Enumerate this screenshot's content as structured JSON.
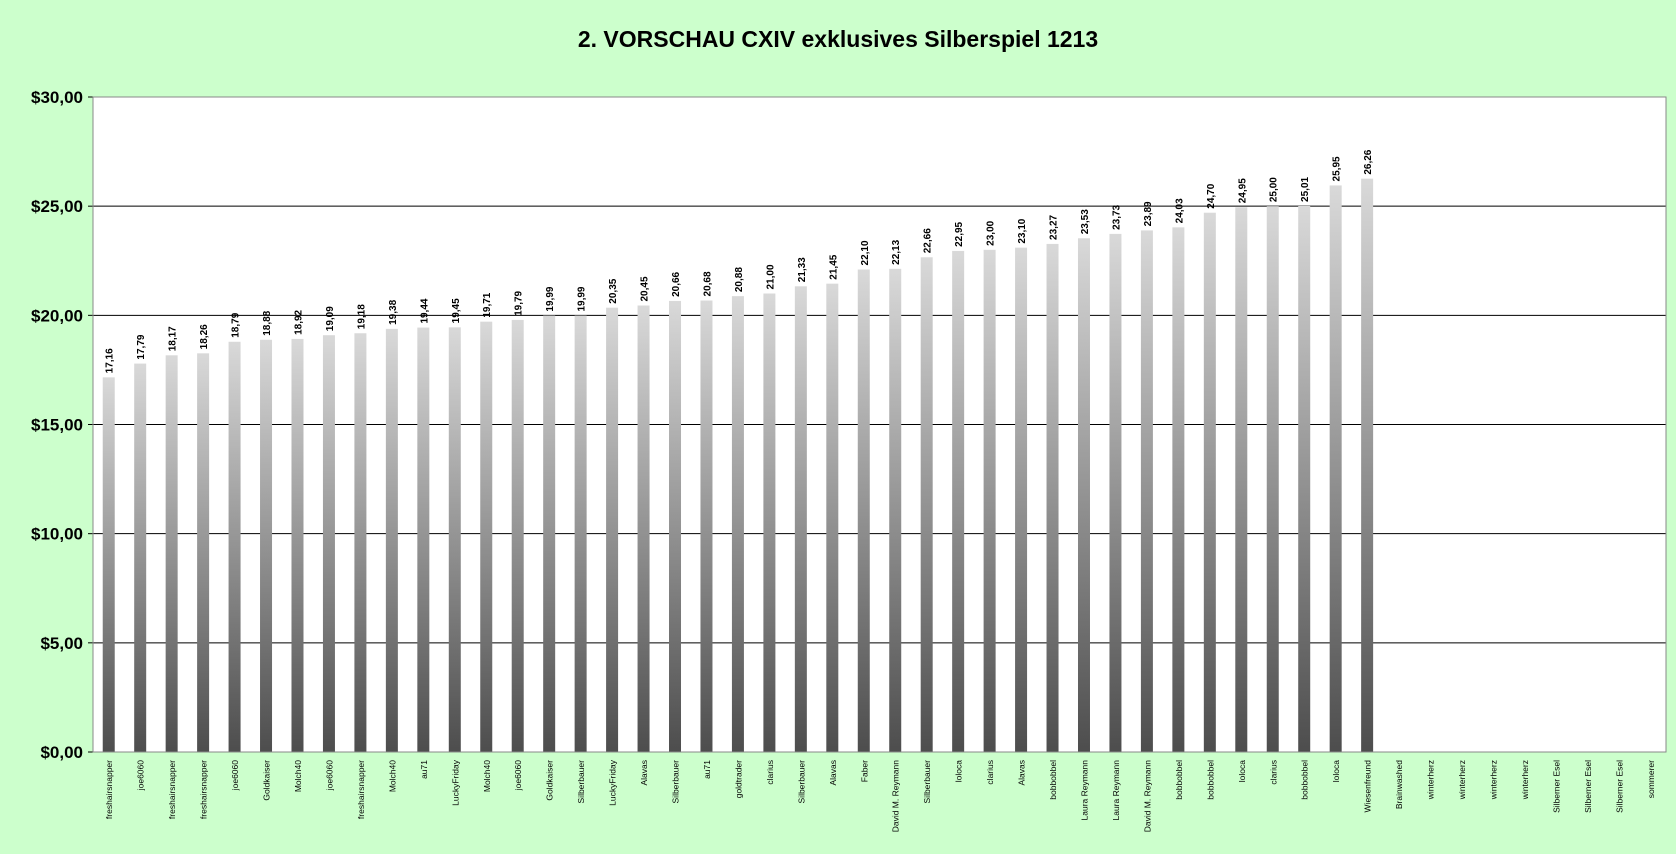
{
  "chart_data": {
    "type": "bar",
    "title": "2. VORSCHAU CXIV exklusives Silberspiel 1213",
    "xlabel": "",
    "ylabel": "",
    "ylim": [
      0,
      30
    ],
    "yticks": [
      "$0,00",
      "$5,00",
      "$10,00",
      "$15,00",
      "$20,00",
      "$25,00",
      "$30,00"
    ],
    "grid": true,
    "legend": "none",
    "colors": {
      "background": "#ccffcc",
      "plot_area": "#ffffff",
      "bar_light": "#d9d9d9",
      "bar_dark": "#4d4d4d",
      "grid": "#000000"
    },
    "categories": [
      "freshairsnapper",
      "joe6060",
      "freshairsnapper",
      "freshairsnapper",
      "joe6060",
      "Goldkaiser",
      "Molch40",
      "joe6060",
      "freshairsnapper",
      "Molch40",
      "au71",
      "LuckyFriday",
      "Molch40",
      "joe6060",
      "Goldkaiser",
      "Silberbauer",
      "LuckyFriday",
      "Alavas",
      "Silberbauer",
      "au71",
      "goldtrader",
      "clarius",
      "Silberbauer",
      "Alavas",
      "Faber",
      "David M. Reymann",
      "Silberbauer",
      "loloca",
      "clarius",
      "Alavas",
      "bobbobbel",
      "Laura Reymann",
      "Laura Reymann",
      "David M. Reymann",
      "bobbobbel",
      "bobbobbel",
      "loloca",
      "clarius",
      "bobbobbel",
      "loloca",
      "Wiesenfreund",
      "Brainwashed",
      "winterherz",
      "winterherz",
      "winterherz",
      "winterherz",
      "Silberner Esel",
      "Silberner Esel",
      "Silberner Esel",
      "sommerer"
    ],
    "values": [
      17.16,
      17.79,
      18.17,
      18.26,
      18.79,
      18.88,
      18.92,
      19.09,
      19.18,
      19.38,
      19.44,
      19.45,
      19.71,
      19.79,
      19.99,
      19.99,
      20.35,
      20.45,
      20.66,
      20.68,
      20.88,
      21.0,
      21.33,
      21.45,
      22.1,
      22.13,
      22.66,
      22.95,
      23.0,
      23.1,
      23.27,
      23.53,
      23.73,
      23.89,
      24.03,
      24.7,
      24.95,
      25.0,
      25.01,
      25.95,
      26.26,
      null,
      null,
      null,
      null,
      null,
      null,
      null,
      null,
      null
    ],
    "data_labels": [
      "17,16",
      "17,79",
      "18,17",
      "18,26",
      "18,79",
      "18,88",
      "18,92",
      "19,09",
      "19,18",
      "19,38",
      "19,44",
      "19,45",
      "19,71",
      "19,79",
      "19,99",
      "19,99",
      "20,35",
      "20,45",
      "20,66",
      "20,68",
      "20,88",
      "21,00",
      "21,33",
      "21,45",
      "22,10",
      "22,13",
      "22,66",
      "22,95",
      "23,00",
      "23,10",
      "23,27",
      "23,53",
      "23,73",
      "23,89",
      "24,03",
      "24,70",
      "24,95",
      "25,00",
      "25,01",
      "25,95",
      "26,26",
      "",
      "",
      "",
      "",
      "",
      "",
      "",
      "",
      ""
    ]
  }
}
